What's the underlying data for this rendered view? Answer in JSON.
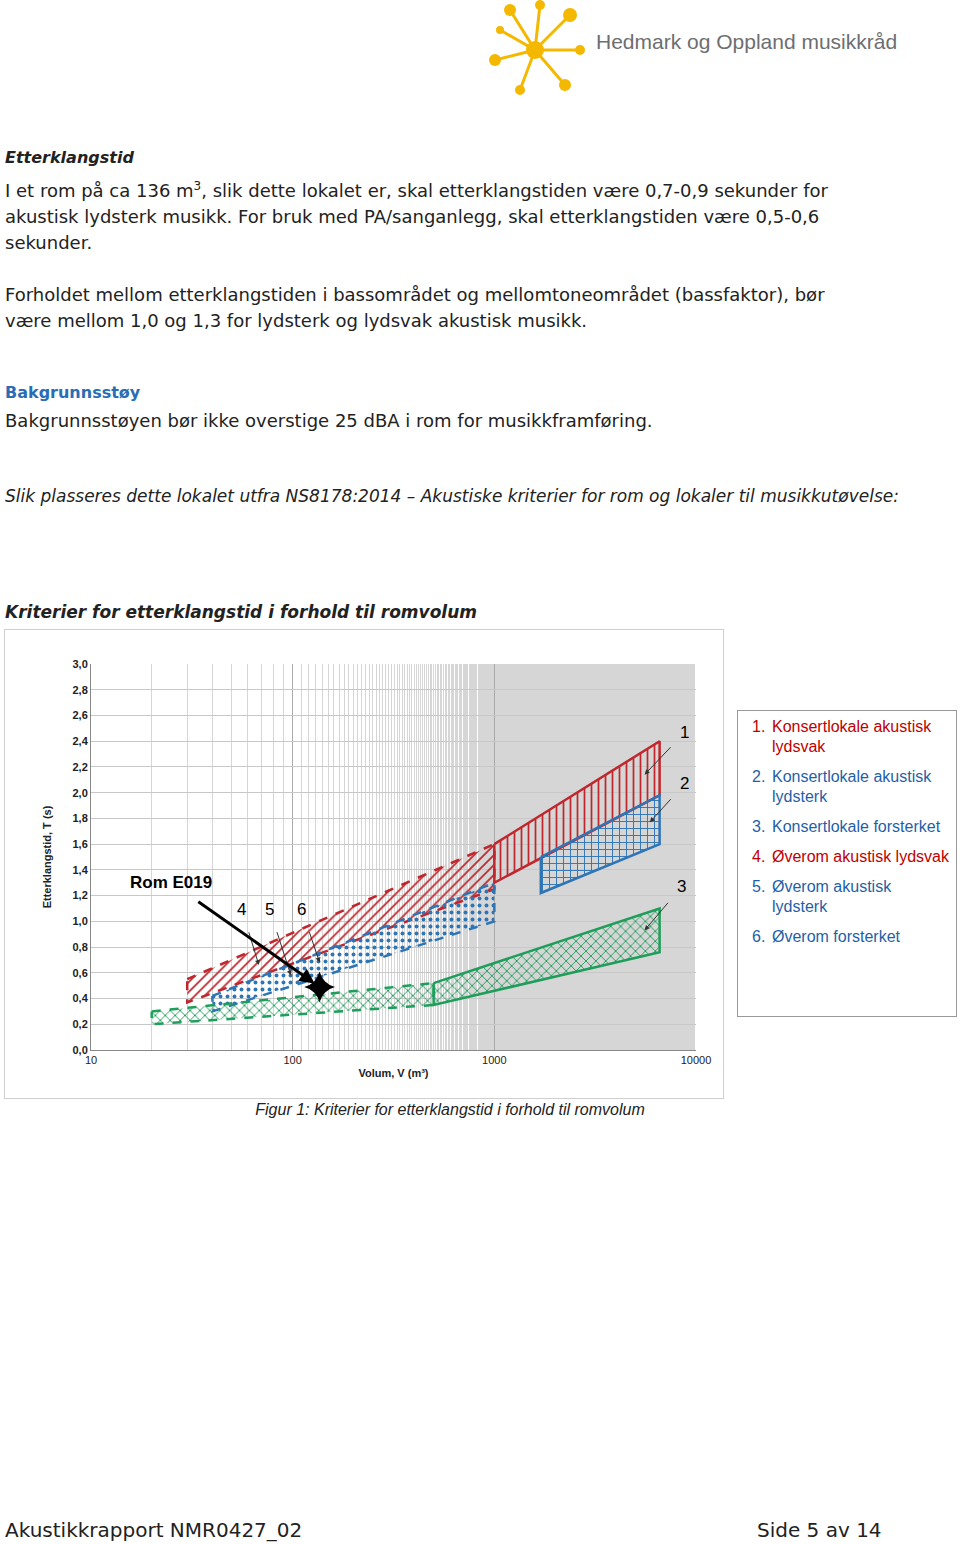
{
  "header": {
    "logo_text": "Hedmark og Oppland musikkråd"
  },
  "sections": [
    {
      "heading": "Etterklangstid",
      "paragraphs": [
        {
          "before": "I et rom på ca 136 m",
          "sup": "3",
          "after": ", slik dette lokalet er, skal etterklangstiden være 0,7-0,9 sekunder for akustisk lydsterk musikk. For bruk med PA/sanganlegg, skal etterklangstiden være 0,5-0,6 sekunder."
        },
        {
          "before": "Forholdet mellom etterklangstiden i bassområdet og mellomtoneområdet (bassfaktor), bør være mellom 1,0 og 1,3 for lydsterk og lydsvak akustisk musikk.",
          "sup": "",
          "after": ""
        }
      ]
    },
    {
      "heading": "Bakgrunnsstøy",
      "paragraphs": [
        {
          "before": "Bakgrunnsstøyen bør ikke overstige 25 dBA i rom for musikkframføring.",
          "sup": "",
          "after": ""
        }
      ]
    }
  ],
  "intro_italic": "Slik plasseres dette lokalet utfra NS8178:2014 – Akustiske kriterier for rom og lokaler til musikkutøvelse:",
  "chart_heading": "Kriterier for etterklangstid i forhold til romvolum",
  "chart_data": {
    "type": "area",
    "x_label": "Volum, V (m³)",
    "y_label": "Etterklangstid, T (s)",
    "log": "x",
    "grid": true,
    "xlim": [
      10,
      10000
    ],
    "xticks": [
      10,
      100,
      1000,
      10000
    ],
    "ylim": [
      0,
      3
    ],
    "yticks": [
      {
        "value": 0,
        "label": "0,0"
      },
      {
        "value": 0.2,
        "label": "0,2"
      },
      {
        "value": 0.4,
        "label": "0,4"
      },
      {
        "value": 0.6,
        "label": "0,6"
      },
      {
        "value": 0.8,
        "label": "0,8"
      },
      {
        "value": 1,
        "label": "1,0"
      },
      {
        "value": 1.2,
        "label": "1,2"
      },
      {
        "value": 1.4,
        "label": "1,4"
      },
      {
        "value": 1.6,
        "label": "1,6"
      },
      {
        "value": 1.8,
        "label": "1,8"
      },
      {
        "value": 2,
        "label": "2,0"
      },
      {
        "value": 2.2,
        "label": "2,2"
      },
      {
        "value": 2.4,
        "label": "2,4"
      },
      {
        "value": 2.6,
        "label": "2,6"
      },
      {
        "value": 2.8,
        "label": "2,8"
      },
      {
        "value": 3,
        "label": "3,0"
      }
    ],
    "bands": [
      {
        "color": "#c0272d",
        "line_style": "solid",
        "x": [
          1000,
          6600
        ],
        "upper": [
          1.6,
          2.4
        ],
        "lower": [
          1.3,
          1.98
        ]
      },
      {
        "color": "#2e75b6",
        "line_style": "solid",
        "x": [
          1700,
          6600
        ],
        "upper": [
          1.5,
          1.98
        ],
        "lower": [
          1.22,
          1.6
        ]
      },
      {
        "color": "#1e9e5a",
        "line_style": "solid",
        "x": [
          500,
          6600
        ],
        "upper": [
          0.52,
          1.1
        ],
        "lower": [
          0.35,
          0.76
        ]
      },
      {
        "color": "#c0272d",
        "line_style": "dashed",
        "x": [
          30,
          1000
        ],
        "upper": [
          0.55,
          1.6
        ],
        "lower": [
          0.37,
          1.25
        ]
      },
      {
        "color": "#2e75b6",
        "line_style": "dashed",
        "x": [
          40,
          1000
        ],
        "upper": [
          0.42,
          1.3
        ],
        "lower": [
          0.3,
          1.0
        ]
      },
      {
        "color": "#1e9e5a",
        "line_style": "dashed",
        "x": [
          20,
          500
        ],
        "upper": [
          0.3,
          0.52
        ],
        "lower": [
          0.2,
          0.35
        ]
      }
    ],
    "point": {
      "x": 136,
      "y": 0.49,
      "marker": "star-diamond",
      "color": "#000000",
      "label": "Rom E019",
      "label_x": 25,
      "label_y": 1.3
    },
    "annotations": [
      {
        "text": "1",
        "x": 8800,
        "y": 2.47,
        "point_x": 5560,
        "point_y": 2.14
      },
      {
        "text": "2",
        "x": 8800,
        "y": 2.07,
        "point_x": 5900,
        "point_y": 1.77
      },
      {
        "text": "3",
        "x": 8500,
        "y": 1.27,
        "point_x": 5560,
        "point_y": 0.93
      },
      {
        "text": "4",
        "x": 56,
        "y": 1.09,
        "point_x": 68,
        "point_y": 0.66
      },
      {
        "text": "5",
        "x": 77,
        "y": 1.09,
        "point_x": 98,
        "point_y": 0.58
      },
      {
        "text": "6",
        "x": 111,
        "y": 1.09,
        "point_x": 136,
        "point_y": 0.68
      }
    ],
    "legend_items": [
      {
        "label": "1.",
        "text": "Konsertlokale akustisk lydsvak",
        "color": "#c00000"
      },
      {
        "label": "2.",
        "text": "Konsertlokale akustisk lydsterk",
        "color": "#1f5fa8"
      },
      {
        "label": "3.",
        "text": "Konsertlokale forsterket",
        "color": "#1f5fa8"
      },
      {
        "label": "4.",
        "text": "Øverom akustisk lydsvak",
        "color": "#c00000"
      },
      {
        "label": "5.",
        "text": "Øverom akustisk lydsterk",
        "color": "#1f5fa8"
      },
      {
        "label": "6.",
        "text": "Øverom forsterket",
        "color": "#1f5fa8"
      }
    ]
  },
  "caption": "Figur 1: Kriterier for etterklangstid i forhold til romvolum",
  "footer": {
    "left": "Akustikkrapport NMR0427_02",
    "right": "Side 5 av 14"
  }
}
